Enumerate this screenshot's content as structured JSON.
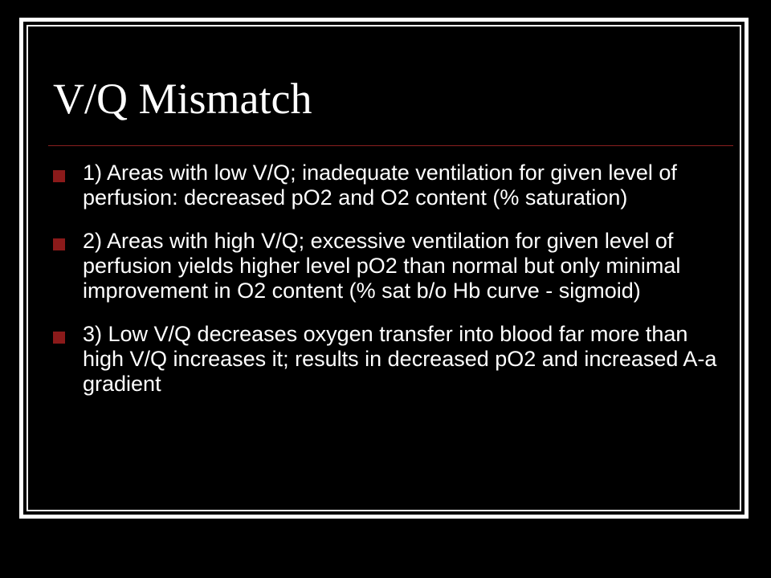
{
  "slide": {
    "title": "V/Q Mismatch",
    "colors": {
      "background": "#000000",
      "frame": "#ffffff",
      "text": "#ffffff",
      "accent": "#8b1a1a"
    },
    "bullets": [
      {
        "text": "1) Areas with low V/Q; inadequate ventilation for given level of perfusion: decreased pO2 and O2 content (% saturation)"
      },
      {
        "text": "2) Areas with high V/Q; excessive ventilation for given level of perfusion yields higher level pO2 than normal but only minimal improvement in O2 content (% sat b/o Hb curve - sigmoid)"
      },
      {
        "text": "3) Low V/Q decreases oxygen transfer into blood far more than high V/Q increases it; results in decreased pO2 and increased A-a gradient"
      }
    ]
  }
}
